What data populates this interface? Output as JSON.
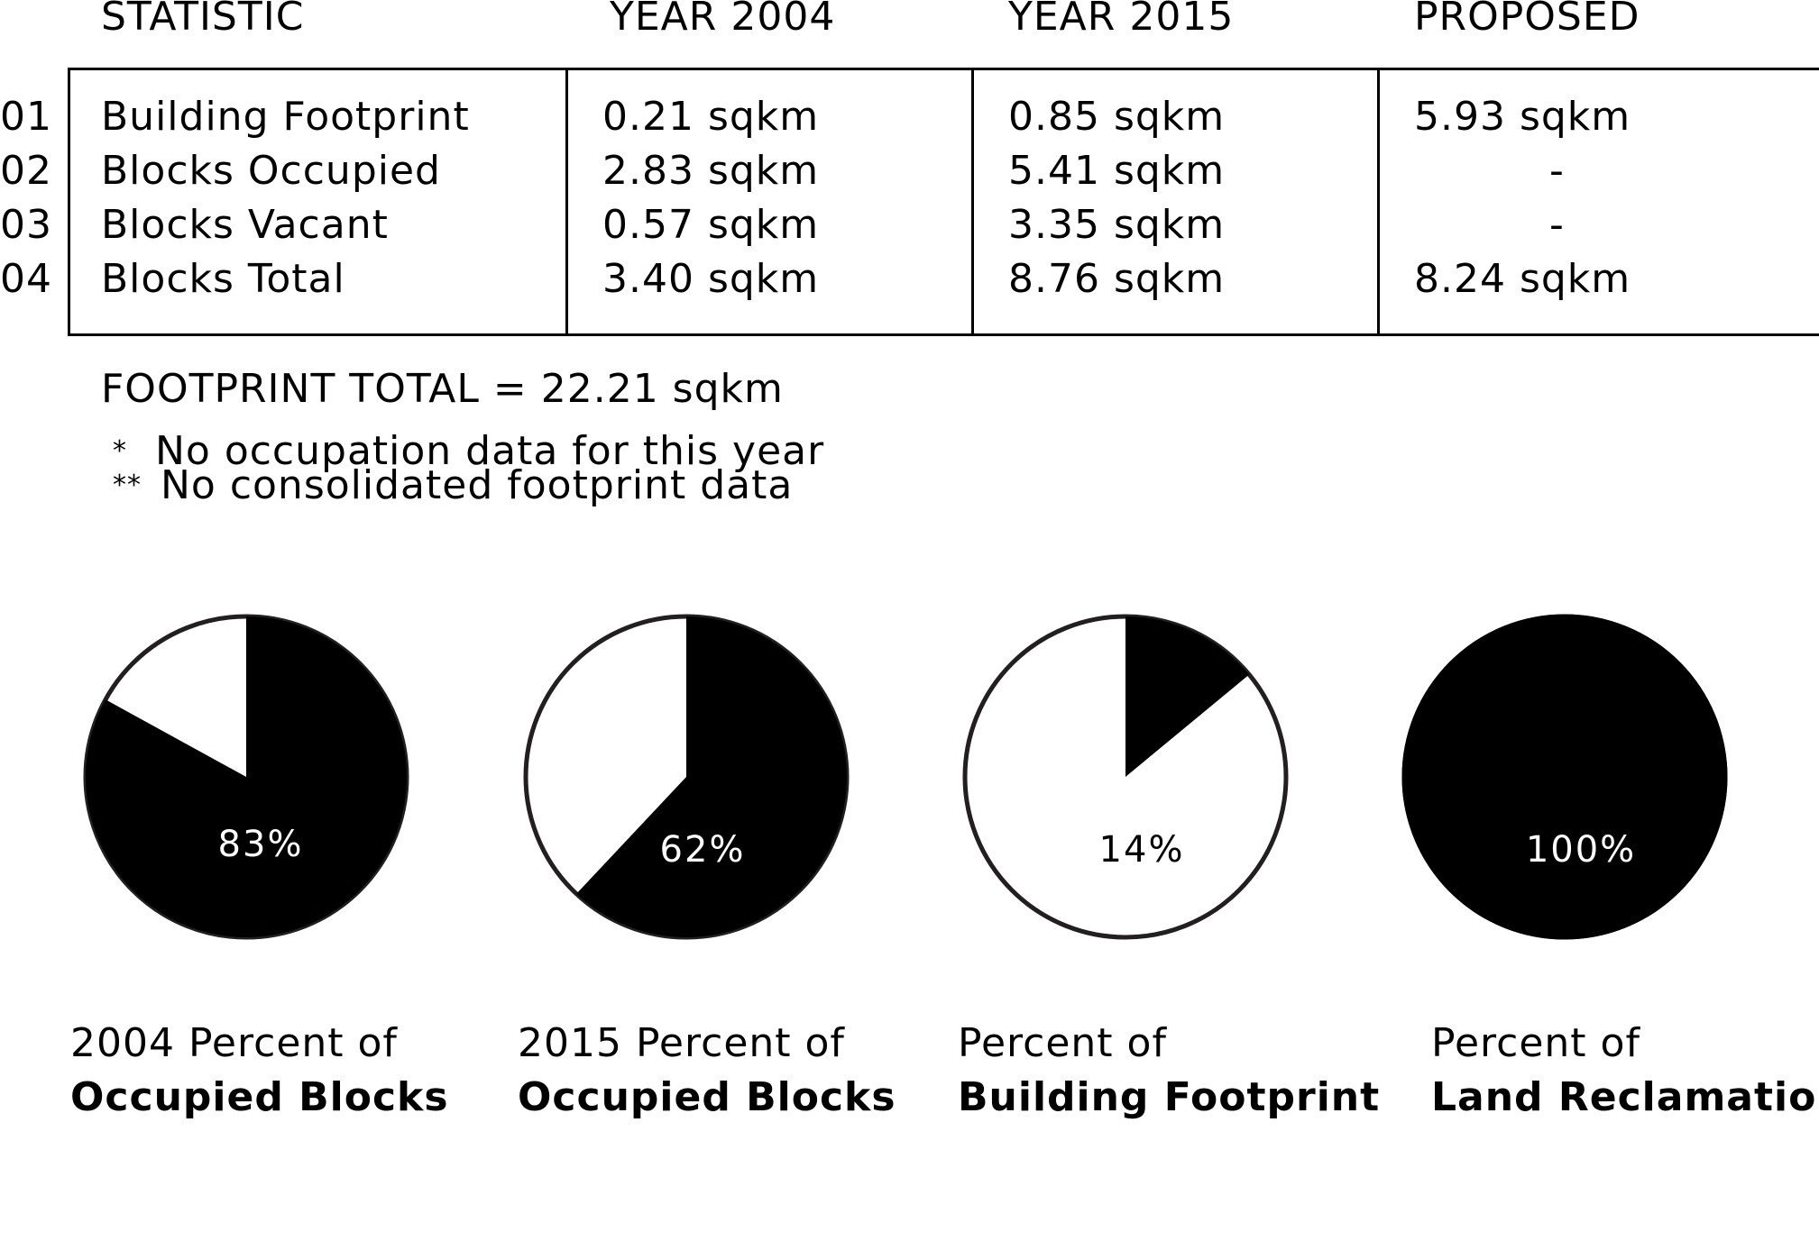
{
  "table": {
    "headers": [
      "STATISTIC",
      "YEAR 2004",
      "YEAR 2015",
      "PROPOSED"
    ],
    "rows": [
      {
        "num": "01",
        "label": "Building Footprint",
        "y2004": "0.21 sqkm",
        "y2015": "0.85 sqkm",
        "proposed": "5.93 sqkm"
      },
      {
        "num": "02",
        "label": "Blocks Occupied",
        "y2004": "2.83 sqkm",
        "y2015": "5.41 sqkm",
        "proposed": "-"
      },
      {
        "num": "03",
        "label": "Blocks Vacant",
        "y2004": "0.57 sqkm",
        "y2015": "3.35 sqkm",
        "proposed": "-"
      },
      {
        "num": "04",
        "label": "Blocks Total",
        "y2004": "3.40 sqkm",
        "y2015": "8.76 sqkm",
        "proposed": "8.24 sqkm"
      }
    ]
  },
  "footprint_total": "FOOTPRINT TOTAL = 22.21 sqkm",
  "notes": {
    "n1_mark": "*",
    "n1_text": "No occupation data for this year",
    "n2_mark": "**",
    "n2_text": "No consolidated footprint data"
  },
  "colors": {
    "fill": "#000000",
    "empty": "#ffffff",
    "stroke": "#231f20"
  },
  "chart_data": [
    {
      "type": "pie",
      "value_label": "83%",
      "value": 83,
      "caption_line1": "2004 Percent of",
      "caption_line2": "Occupied Blocks"
    },
    {
      "type": "pie",
      "value_label": "62%",
      "value": 62,
      "caption_line1": "2015 Percent of",
      "caption_line2": "Occupied Blocks"
    },
    {
      "type": "pie",
      "value_label": "14%",
      "value": 14,
      "caption_line1": "Percent of",
      "caption_line2": "Building Footprint"
    },
    {
      "type": "pie",
      "value_label": "100%",
      "value": 100,
      "caption_line1": "Percent of",
      "caption_line2": "Land Reclamation"
    }
  ]
}
